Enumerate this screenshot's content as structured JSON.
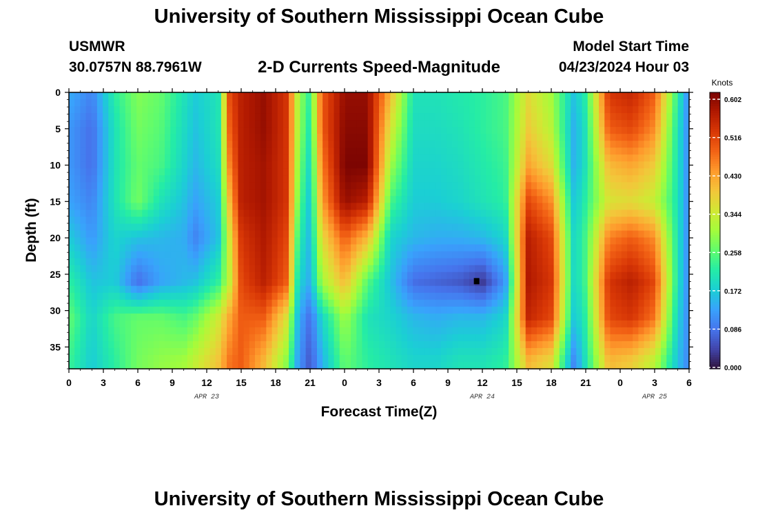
{
  "header": {
    "title": "University of Southern Mississippi Ocean Cube",
    "station": "USMWR",
    "coords": "30.0757N  88.7961W",
    "chart_title": "2-D Currents Speed-Magnitude",
    "model_start_label": "Model Start Time",
    "model_start_time": "04/23/2024 Hour 03"
  },
  "footer": {
    "title": "University of Southern Mississippi Ocean Cube"
  },
  "chart_data": {
    "type": "heatmap",
    "title": "2-D Currents Speed-Magnitude",
    "xlabel": "Forecast Time(Z)",
    "ylabel": "Depth (ft)",
    "x_tick_labels": [
      "0",
      "3",
      "6",
      "9",
      "12",
      "15",
      "18",
      "21",
      "0",
      "3",
      "6",
      "9",
      "12",
      "15",
      "18",
      "21",
      "0",
      "3",
      "6"
    ],
    "x_date_labels": [
      {
        "text": "APR 23",
        "at_hour": 12
      },
      {
        "text": "APR 24",
        "at_hour": 36
      },
      {
        "text": "APR 25",
        "at_hour": 51
      }
    ],
    "x_range_hours": [
      0,
      54
    ],
    "y_tick_labels": [
      "0",
      "5",
      "10",
      "15",
      "20",
      "25",
      "30",
      "35"
    ],
    "y_range_ft": [
      0,
      38
    ],
    "y_inverted": true,
    "colorbar": {
      "unit": "Knots",
      "min": 0.0,
      "max": 0.602,
      "tick_labels": [
        "0.602",
        "0.516",
        "0.430",
        "0.344",
        "0.258",
        "0.172",
        "0.086",
        "0.000"
      ],
      "tick_values": [
        0.602,
        0.516,
        0.43,
        0.344,
        0.258,
        0.172,
        0.086,
        0.0
      ]
    },
    "depth_levels_ft": [
      0,
      5,
      10,
      15,
      20,
      26,
      31,
      37
    ],
    "speed_samples": [
      {
        "hour": 0,
        "speeds": [
          0.14,
          0.12,
          0.12,
          0.13,
          0.17,
          0.22,
          0.26,
          0.23
        ]
      },
      {
        "hour": 2,
        "speeds": [
          0.1,
          0.08,
          0.08,
          0.1,
          0.12,
          0.16,
          0.18,
          0.17
        ]
      },
      {
        "hour": 4,
        "speeds": [
          0.22,
          0.2,
          0.2,
          0.2,
          0.18,
          0.17,
          0.24,
          0.22
        ]
      },
      {
        "hour": 6,
        "speeds": [
          0.28,
          0.27,
          0.26,
          0.27,
          0.16,
          0.08,
          0.26,
          0.27
        ]
      },
      {
        "hour": 8,
        "speeds": [
          0.26,
          0.25,
          0.24,
          0.2,
          0.15,
          0.13,
          0.26,
          0.29
        ]
      },
      {
        "hour": 10,
        "speeds": [
          0.2,
          0.19,
          0.18,
          0.16,
          0.14,
          0.15,
          0.24,
          0.3
        ]
      },
      {
        "hour": 11,
        "speeds": [
          0.17,
          0.16,
          0.15,
          0.13,
          0.1,
          0.16,
          0.26,
          0.33
        ]
      },
      {
        "hour": 13,
        "speeds": [
          0.2,
          0.2,
          0.19,
          0.17,
          0.16,
          0.22,
          0.34,
          0.39
        ]
      },
      {
        "hour": 14,
        "speeds": [
          0.5,
          0.48,
          0.45,
          0.4,
          0.35,
          0.33,
          0.42,
          0.46
        ]
      },
      {
        "hour": 15,
        "speeds": [
          0.55,
          0.55,
          0.55,
          0.55,
          0.52,
          0.5,
          0.48,
          0.48
        ]
      },
      {
        "hour": 17,
        "speeds": [
          0.58,
          0.58,
          0.57,
          0.57,
          0.56,
          0.55,
          0.48,
          0.4
        ]
      },
      {
        "hour": 19,
        "speeds": [
          0.52,
          0.52,
          0.52,
          0.52,
          0.5,
          0.48,
          0.35,
          0.28
        ]
      },
      {
        "hour": 20,
        "speeds": [
          0.3,
          0.3,
          0.28,
          0.26,
          0.22,
          0.18,
          0.14,
          0.12
        ]
      },
      {
        "hour": 21,
        "speeds": [
          0.22,
          0.2,
          0.18,
          0.16,
          0.15,
          0.14,
          0.08,
          0.06
        ]
      },
      {
        "hour": 22,
        "speeds": [
          0.48,
          0.48,
          0.45,
          0.42,
          0.36,
          0.3,
          0.18,
          0.14
        ]
      },
      {
        "hour": 24,
        "speeds": [
          0.58,
          0.59,
          0.6,
          0.58,
          0.48,
          0.4,
          0.3,
          0.26
        ]
      },
      {
        "hour": 26,
        "speeds": [
          0.58,
          0.59,
          0.6,
          0.55,
          0.4,
          0.25,
          0.2,
          0.22
        ]
      },
      {
        "hour": 28,
        "speeds": [
          0.4,
          0.35,
          0.3,
          0.24,
          0.18,
          0.16,
          0.18,
          0.2
        ]
      },
      {
        "hour": 30,
        "speeds": [
          0.2,
          0.19,
          0.18,
          0.17,
          0.15,
          0.08,
          0.15,
          0.18
        ]
      },
      {
        "hour": 32,
        "speeds": [
          0.2,
          0.19,
          0.18,
          0.17,
          0.14,
          0.07,
          0.14,
          0.18
        ]
      },
      {
        "hour": 34,
        "speeds": [
          0.21,
          0.2,
          0.19,
          0.18,
          0.14,
          0.06,
          0.15,
          0.2
        ]
      },
      {
        "hour": 36,
        "speeds": [
          0.22,
          0.22,
          0.21,
          0.2,
          0.15,
          0.03,
          0.15,
          0.2
        ]
      },
      {
        "hour": 38,
        "speeds": [
          0.24,
          0.24,
          0.23,
          0.22,
          0.18,
          0.12,
          0.18,
          0.22
        ]
      },
      {
        "hour": 40,
        "speeds": [
          0.36,
          0.38,
          0.42,
          0.5,
          0.55,
          0.56,
          0.54,
          0.4
        ]
      },
      {
        "hour": 42,
        "speeds": [
          0.3,
          0.32,
          0.36,
          0.44,
          0.5,
          0.52,
          0.5,
          0.36
        ]
      },
      {
        "hour": 44,
        "speeds": [
          0.16,
          0.14,
          0.14,
          0.16,
          0.18,
          0.18,
          0.16,
          0.1
        ]
      },
      {
        "hour": 45,
        "speeds": [
          0.22,
          0.2,
          0.2,
          0.22,
          0.24,
          0.24,
          0.22,
          0.2
        ]
      },
      {
        "hour": 47,
        "speeds": [
          0.52,
          0.48,
          0.4,
          0.35,
          0.45,
          0.52,
          0.5,
          0.4
        ]
      },
      {
        "hour": 49,
        "speeds": [
          0.54,
          0.5,
          0.42,
          0.36,
          0.48,
          0.55,
          0.52,
          0.38
        ]
      },
      {
        "hour": 51,
        "speeds": [
          0.48,
          0.44,
          0.38,
          0.33,
          0.44,
          0.5,
          0.46,
          0.32
        ]
      },
      {
        "hour": 53,
        "speeds": [
          0.22,
          0.2,
          0.2,
          0.2,
          0.2,
          0.2,
          0.18,
          0.16
        ]
      },
      {
        "hour": 54,
        "speeds": [
          0.1,
          0.1,
          0.1,
          0.1,
          0.1,
          0.1,
          0.1,
          0.1
        ]
      }
    ],
    "min_marker": {
      "hour": 35.5,
      "depth_ft": 26
    },
    "colormap": [
      "#30123b",
      "#4145ab",
      "#4675ed",
      "#39a2fc",
      "#1bcfd4",
      "#24eca6",
      "#61fc6c",
      "#a4fc3b",
      "#d1e834",
      "#f3c63a",
      "#fe9b2d",
      "#f36315",
      "#d93806",
      "#b11901",
      "#7a0402"
    ]
  }
}
